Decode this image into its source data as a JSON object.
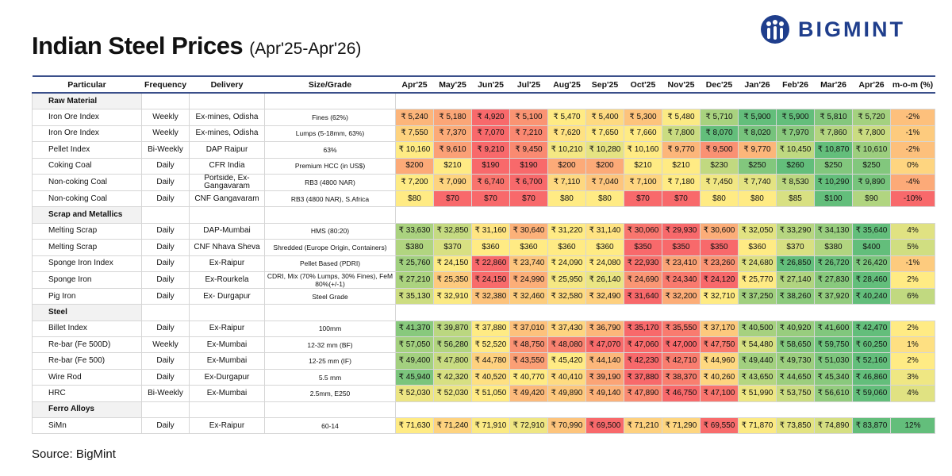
{
  "header": {
    "title": "Indian Steel Prices",
    "subtitle": "(Apr'25-Apr'26)",
    "logo": "BIGMINT"
  },
  "table": {
    "columns": [
      "Particular",
      "Frequency",
      "Delivery",
      "Size/Grade",
      "Apr'25",
      "May'25",
      "Jun'25",
      "Jul'25",
      "Aug'25",
      "Sep'25",
      "Oct'25",
      "Nov'25",
      "Dec'25",
      "Jan'26",
      "Feb'26",
      "Mar'26",
      "Apr'26",
      "m-o-m (%)"
    ],
    "sections": [
      {
        "name": "Raw Material",
        "rows": [
          [
            "Iron Ore Index",
            "Weekly",
            "Ex-mines, Odisha",
            "Fines (62%)",
            "₹ 5,240",
            "₹ 5,180",
            "₹ 4,920",
            "₹ 5,100",
            "₹ 5,470",
            "₹ 5,400",
            "₹ 5,300",
            "₹ 5,480",
            "₹ 5,710",
            "₹ 5,900",
            "₹ 5,900",
            "₹ 5,810",
            "₹ 5,720",
            "-2%"
          ],
          [
            "Iron Ore Index",
            "Weekly",
            "Ex-mines, Odisha",
            "Lumps (5-18mm, 63%)",
            "₹ 7,550",
            "₹ 7,370",
            "₹ 7,070",
            "₹ 7,210",
            "₹ 7,620",
            "₹ 7,650",
            "₹ 7,660",
            "₹ 7,800",
            "₹ 8,070",
            "₹ 8,020",
            "₹ 7,970",
            "₹ 7,860",
            "₹ 7,800",
            "-1%"
          ],
          [
            "Pellet Index",
            "Bi-Weekly",
            "DAP Raipur",
            "63%",
            "₹ 10,160",
            "₹ 9,610",
            "₹ 9,210",
            "₹ 9,450",
            "₹ 10,210",
            "₹ 10,280",
            "₹ 10,160",
            "₹ 9,770",
            "₹ 9,500",
            "₹ 9,770",
            "₹ 10,450",
            "₹ 10,870",
            "₹ 10,610",
            "-2%"
          ],
          [
            "Coking Coal",
            "Daily",
            "CFR India",
            "Premium HCC (in US$)",
            "$200",
            "$210",
            "$190",
            "$190",
            "$200",
            "$200",
            "$210",
            "$210",
            "$230",
            "$250",
            "$260",
            "$250",
            "$250",
            "0%"
          ],
          [
            "Non-coking Coal",
            "Daily",
            "Portside, Ex-Gangavaram",
            "RB3 (4800 NAR)",
            "₹ 7,200",
            "₹ 7,090",
            "₹ 6,740",
            "₹ 6,700",
            "₹ 7,110",
            "₹ 7,040",
            "₹ 7,100",
            "₹ 7,180",
            "₹ 7,450",
            "₹ 7,740",
            "₹ 8,530",
            "₹ 10,290",
            "₹ 9,890",
            "-4%"
          ],
          [
            "Non-coking Coal",
            "Daily",
            "CNF Gangavaram",
            "RB3 (4800 NAR), S.Africa",
            "$80",
            "$70",
            "$70",
            "$70",
            "$80",
            "$80",
            "$70",
            "$70",
            "$80",
            "$80",
            "$85",
            "$100",
            "$90",
            "-10%"
          ]
        ]
      },
      {
        "name": "Scrap and Metallics",
        "rows": [
          [
            "Melting Scrap",
            "Daily",
            "DAP-Mumbai",
            "HMS (80:20)",
            "₹ 33,630",
            "₹ 32,850",
            "₹ 31,160",
            "₹ 30,640",
            "₹ 31,220",
            "₹ 31,140",
            "₹ 30,060",
            "₹ 29,930",
            "₹ 30,600",
            "₹ 32,050",
            "₹ 33,290",
            "₹ 34,130",
            "₹ 35,640",
            "4%"
          ],
          [
            "Melting Scrap",
            "Daily",
            "CNF Nhava Sheva",
            "Shredded (Europe Origin, Containers)",
            "$380",
            "$370",
            "$360",
            "$360",
            "$360",
            "$360",
            "$350",
            "$350",
            "$350",
            "$360",
            "$370",
            "$380",
            "$400",
            "5%"
          ],
          [
            "Sponge Iron Index",
            "Daily",
            "Ex-Raipur",
            "Pellet Based (PDRI)",
            "₹ 25,760",
            "₹ 24,150",
            "₹ 22,860",
            "₹ 23,740",
            "₹ 24,090",
            "₹ 24,080",
            "₹ 22,930",
            "₹ 23,410",
            "₹ 23,260",
            "₹ 24,680",
            "₹ 26,850",
            "₹ 26,720",
            "₹ 26,420",
            "-1%"
          ],
          [
            "Sponge Iron",
            "Daily",
            "Ex-Rourkela",
            "CDRI, Mix (70% Lumps, 30% Fines), FeM 80%(+/-1)",
            "₹ 27,210",
            "₹ 25,350",
            "₹ 24,150",
            "₹ 24,990",
            "₹ 25,950",
            "₹ 26,140",
            "₹ 24,690",
            "₹ 24,340",
            "₹ 24,120",
            "₹ 25,770",
            "₹ 27,140",
            "₹ 27,830",
            "₹ 28,460",
            "2%"
          ],
          [
            "Pig Iron",
            "Daily",
            "Ex- Durgapur",
            "Steel Grade",
            "₹ 35,130",
            "₹ 32,910",
            "₹ 32,380",
            "₹ 32,460",
            "₹ 32,580",
            "₹ 32,490",
            "₹ 31,640",
            "₹ 32,200",
            "₹ 32,710",
            "₹ 37,250",
            "₹ 38,260",
            "₹ 37,920",
            "₹ 40,240",
            "6%"
          ]
        ]
      },
      {
        "name": "Steel",
        "rows": [
          [
            "Billet Index",
            "Daily",
            "Ex-Raipur",
            "100mm",
            "₹ 41,370",
            "₹ 39,870",
            "₹ 37,880",
            "₹ 37,010",
            "₹ 37,430",
            "₹ 36,790",
            "₹ 35,170",
            "₹ 35,550",
            "₹ 37,170",
            "₹ 40,500",
            "₹ 40,920",
            "₹ 41,600",
            "₹ 42,470",
            "2%"
          ],
          [
            "Re-bar (Fe 500D)",
            "Weekly",
            "Ex-Mumbai",
            "12-32 mm (BF)",
            "₹ 57,050",
            "₹ 56,280",
            "₹ 52,520",
            "₹ 48,750",
            "₹ 48,080",
            "₹ 47,070",
            "₹ 47,060",
            "₹ 47,000",
            "₹ 47,750",
            "₹ 54,480",
            "₹ 58,650",
            "₹ 59,750",
            "₹ 60,250",
            "1%"
          ],
          [
            "Re-bar (Fe 500)",
            "Daily",
            "Ex-Mumbai",
            "12-25 mm (IF)",
            "₹ 49,400",
            "₹ 47,800",
            "₹ 44,780",
            "₹ 43,550",
            "₹ 45,420",
            "₹ 44,140",
            "₹ 42,230",
            "₹ 42,710",
            "₹ 44,960",
            "₹ 49,440",
            "₹ 49,730",
            "₹ 51,030",
            "₹ 52,160",
            "2%"
          ],
          [
            "Wire Rod",
            "Daily",
            "Ex-Durgapur",
            "5.5 mm",
            "₹ 45,940",
            "₹ 42,320",
            "₹ 40,520",
            "₹ 40,770",
            "₹ 40,410",
            "₹ 39,190",
            "₹ 37,880",
            "₹ 38,370",
            "₹ 40,260",
            "₹ 43,650",
            "₹ 44,650",
            "₹ 45,340",
            "₹ 46,860",
            "3%"
          ],
          [
            "HRC",
            "Bi-Weekly",
            "Ex-Mumbai",
            "2.5mm, E250",
            "₹ 52,030",
            "₹ 52,030",
            "₹ 51,050",
            "₹ 49,420",
            "₹ 49,890",
            "₹ 49,140",
            "₹ 47,890",
            "₹ 46,750",
            "₹ 47,100",
            "₹ 51,990",
            "₹ 53,750",
            "₹ 56,610",
            "₹ 59,060",
            "4%"
          ]
        ]
      },
      {
        "name": "Ferro Alloys",
        "rows": [
          [
            "SiMn",
            "Daily",
            "Ex-Raipur",
            "60-14",
            "₹ 71,630",
            "₹ 71,240",
            "₹ 71,910",
            "₹ 72,910",
            "₹ 70,990",
            "₹ 69,500",
            "₹ 71,210",
            "₹ 71,290",
            "₹ 69,550",
            "₹ 71,870",
            "₹ 73,850",
            "₹ 74,890",
            "₹ 83,870",
            "12%"
          ]
        ]
      }
    ]
  },
  "footer": "Source: BigMint"
}
